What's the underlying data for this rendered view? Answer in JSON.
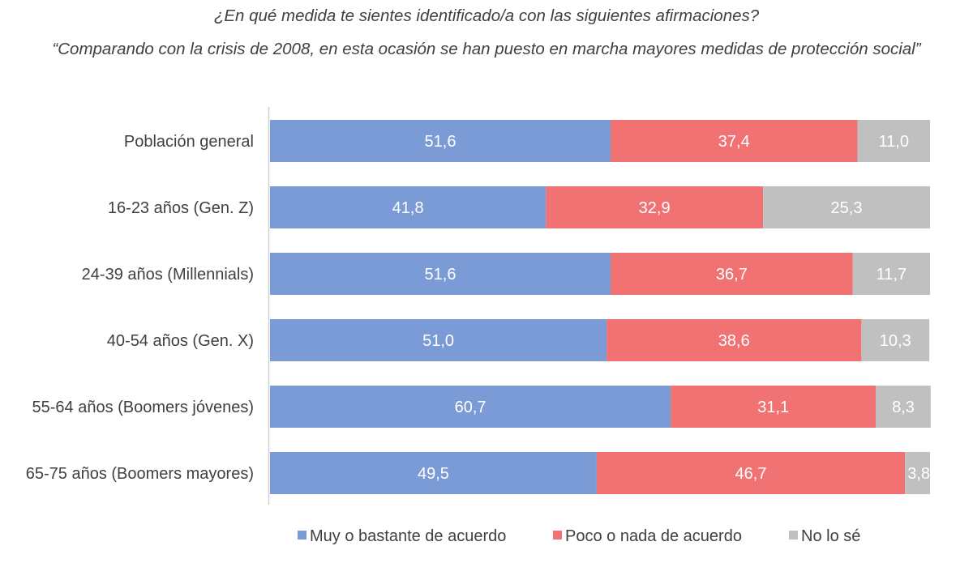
{
  "chart_data": {
    "type": "bar",
    "orientation": "horizontal",
    "stacked": true,
    "title": "¿En qué medida te sientes identificado/a con las siguientes afirmaciones?",
    "subtitle": "“Comparando con la crisis de 2008, en esta ocasión se han puesto en marcha mayores medidas de protección social”",
    "categories": [
      "Población general",
      "16-23 años (Gen. Z)",
      "24-39 años (Millennials)",
      "40-54 años (Gen. X)",
      "55-64 años (Boomers jóvenes)",
      "65-75 años (Boomers mayores)"
    ],
    "series": [
      {
        "name": "Muy o bastante de acuerdo",
        "color": "#7b9bd6",
        "values": [
          51.6,
          41.8,
          51.6,
          51.0,
          60.7,
          49.5
        ],
        "labels": [
          "51,6",
          "41,8",
          "51,6",
          "51,0",
          "60,7",
          "49,5"
        ]
      },
      {
        "name": "Poco o nada de acuerdo",
        "color": "#f07273",
        "values": [
          37.4,
          32.9,
          36.7,
          38.6,
          31.1,
          46.7
        ],
        "labels": [
          "37,4",
          "32,9",
          "36,7",
          "38,6",
          "31,1",
          "46,7"
        ]
      },
      {
        "name": "No lo sé",
        "color": "#c0c0c0",
        "values": [
          11.0,
          25.3,
          11.7,
          10.3,
          8.3,
          3.8
        ],
        "labels": [
          "11,0",
          "25,3",
          "11,7",
          "10,3",
          "8,3",
          "3,8"
        ]
      }
    ],
    "xlim": [
      0,
      100
    ],
    "grid": false,
    "legend_position": "bottom"
  }
}
